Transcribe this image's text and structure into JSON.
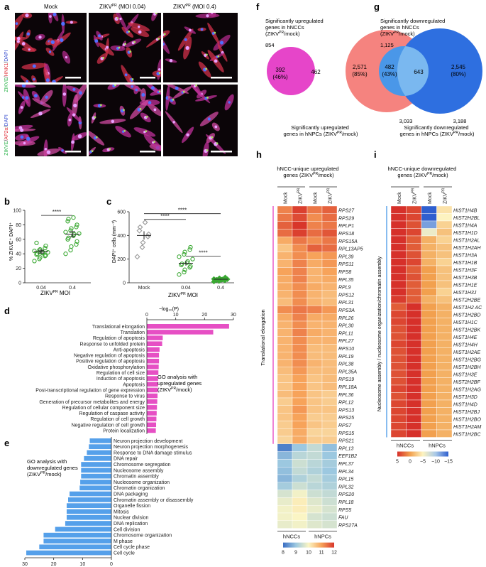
{
  "panels": {
    "a": {
      "letter": "a",
      "col_headers": [
        "Mock",
        "ZIKV",
        "PR",
        " (MOI 0.04)",
        "ZIKV",
        "PR",
        " (MOI 0.4)"
      ],
      "row_labels": [
        {
          "parts": [
            "ZIKVE",
            "/",
            "HNK1",
            "/",
            "DAPI"
          ],
          "colors": [
            "#2bb34a",
            "#333",
            "#e0303a",
            "#333",
            "#3a4fd0"
          ]
        },
        {
          "parts": [
            "ZIKVE",
            "/",
            "AP2α",
            "/",
            "DAPI"
          ],
          "colors": [
            "#2bb34a",
            "#333",
            "#e0303a",
            "#333",
            "#3a4fd0"
          ]
        }
      ]
    },
    "b": {
      "letter": "b",
      "ylabel": "% ZIKVE⁺ DAPI⁺",
      "xlabel": "ZIKV",
      "xlabel_sup": "PR",
      "xlabel_tail": " MOI",
      "sig": "****",
      "colors": {
        "points": "#3aa832"
      }
    },
    "c": {
      "letter": "c",
      "ylabel": "DAPI⁺ cells (mm⁻²)",
      "xlabel": "ZIKV",
      "xlabel_sup": "PR",
      "xlabel_tail": " MOI",
      "sig": [
        "****",
        "****",
        "****"
      ],
      "colors": {
        "mock": "#999999",
        "infected": "#3aa832"
      }
    },
    "d": {
      "letter": "d",
      "axis_title": "−log₁₀(P)",
      "note": [
        "GO analysis with",
        "upregulated genes",
        "(ZIKV",
        "PR",
        "/mock)"
      ],
      "color": "#e64fc4"
    },
    "e": {
      "letter": "e",
      "note": [
        "GO analysis with",
        "downregulated genes",
        "(ZIKV",
        "PR",
        "/mock)"
      ],
      "color": "#55a0ea"
    },
    "f": {
      "letter": "f",
      "top_label": [
        "Significantly upregulated",
        "genes in hNCCs",
        "(ZIKV",
        "PR",
        "/mock)"
      ],
      "top_count": "854",
      "left_only": "392",
      "left_pct": "(46%)",
      "overlap": "462",
      "right_only": "2,571",
      "right_pct": "(85%)",
      "bottom_count": "3,033",
      "bottom_label": [
        "Significantly upregulated",
        "genes in hNPCs (ZIKV",
        "PR",
        "/mock)"
      ],
      "colors": {
        "left": "#e645c9",
        "right": "#f5837f",
        "overlap": "#f364b6"
      }
    },
    "g": {
      "letter": "g",
      "top_label": [
        "Significantly downregulated",
        "genes in hNCCs",
        "(ZIKV",
        "PR",
        "/mock)"
      ],
      "top_count": "1,125",
      "left_only": "482",
      "left_pct": "(43%)",
      "overlap": "643",
      "right_only": "2,545",
      "right_pct": "(80%)",
      "bottom_count": "3,188",
      "bottom_label": [
        "Significantly downregulated",
        "genes in hNPCs (ZIKV",
        "PR",
        "/mock)"
      ],
      "colors": {
        "left": "#4a97e8",
        "right": "#2e6fe0",
        "overlap": "#7ab8f0"
      }
    },
    "h": {
      "letter": "h",
      "title": [
        "hNCC-unique upregulated",
        "genes (ZIKV",
        "PR",
        "/mock)"
      ],
      "col_labels": [
        "Mock",
        "ZIKV",
        "Mock",
        "ZIKV"
      ],
      "col_sup": "PR",
      "row_group": "Translational elongation",
      "group_labels": [
        "hNCCs",
        "hNPCs"
      ],
      "scale_ticks": [
        "8",
        "9",
        "10",
        "11",
        "12"
      ]
    },
    "i": {
      "letter": "i",
      "title": [
        "hNCC-unique downregulated",
        "genes (ZIKV",
        "PR",
        "/mock)"
      ],
      "col_labels": [
        "Mock",
        "ZIKV",
        "Mock",
        "ZIKV"
      ],
      "col_sup": "PR",
      "row_group": "Nucleosome assembly / nucleosome organization/chromatin assembly",
      "group_labels": [
        "hNCCs",
        "hNPCs"
      ],
      "scale_ticks": [
        "5",
        "0",
        "−5",
        "−10",
        "−15"
      ]
    }
  },
  "chart_data": [
    {
      "panel": "b",
      "type": "scatter",
      "categories": [
        "0.04",
        "0.4"
      ],
      "ylim": [
        0,
        100
      ],
      "yticks": [
        0,
        20,
        40,
        60,
        80,
        100
      ],
      "series": [
        {
          "category": "0.04",
          "values": [
            30,
            33,
            35,
            37,
            38,
            39,
            40,
            41,
            42,
            42,
            44,
            45,
            46,
            48,
            51,
            55
          ],
          "mean": 43,
          "sem": 2
        },
        {
          "category": "0.4",
          "values": [
            40,
            45,
            50,
            53,
            57,
            60,
            62,
            65,
            67,
            68,
            70,
            72,
            75,
            77,
            80,
            85,
            88,
            90
          ],
          "mean": 67,
          "sem": 3.5
        }
      ]
    },
    {
      "panel": "c",
      "type": "scatter",
      "categories": [
        "Mock",
        "0.04",
        "0.4"
      ],
      "ylim": [
        0,
        600
      ],
      "yticks": [
        0,
        200,
        400,
        600
      ],
      "series": [
        {
          "category": "Mock",
          "marker": "diamond",
          "values": [
            220,
            300,
            340,
            390,
            410,
            440,
            470,
            510
          ],
          "mean": 400,
          "sem": 35
        },
        {
          "category": "0.04",
          "marker": "circle",
          "values": [
            70,
            90,
            110,
            130,
            140,
            150,
            160,
            170,
            180,
            200,
            220,
            240,
            260,
            280,
            300
          ],
          "mean": 165,
          "sem": 20
        },
        {
          "category": "0.4",
          "marker": "diamond",
          "values": [
            10,
            15,
            18,
            20,
            22,
            24,
            25,
            26,
            28,
            30,
            32,
            35,
            38,
            40,
            45
          ],
          "mean": 30,
          "sem": 4
        }
      ]
    },
    {
      "panel": "d",
      "type": "bar",
      "orientation": "horizontal",
      "xlim": [
        0,
        30
      ],
      "xticks": [
        0,
        10,
        20,
        30
      ],
      "categories": [
        "Translational elongation",
        "Translation",
        "Regulation of apoptosis",
        "Response to unfolded protein",
        "Anti-apoptosis",
        "Negative regulation of apoptosis",
        "Positive regulation of apoptosis",
        "Oxidative phosphorylation",
        "Regulation of cell size",
        "Induction of apoptosis",
        "Apoptosis",
        "Post-transcriptional regulation of gene expression",
        "Response to virus",
        "Generation of precursor metabolites and energy",
        "Regulation of cellular component size",
        "Regulation of caspase activity",
        "Regulation of cell growth",
        "Negative regulation of cell growth",
        "Protein localization"
      ],
      "values": [
        28.5,
        23,
        5.5,
        5.3,
        4.4,
        4.2,
        4.2,
        4.1,
        4.0,
        3.9,
        3.9,
        3.8,
        3.7,
        3.6,
        3.5,
        3.4,
        3.3,
        3.2,
        3.1
      ]
    },
    {
      "panel": "e",
      "type": "bar",
      "orientation": "horizontal-reversed",
      "xlim": [
        0,
        30
      ],
      "xticks": [
        30,
        20,
        10,
        0
      ],
      "categories": [
        "Neuron projection development",
        "Neuron projection morphogenesis",
        "Response to DNA damage stimulus",
        "DNA repair",
        "Chromosome segregation",
        "Nucleosome assembly",
        "Chromatin assembly",
        "Nucleosome organization",
        "Chromatin organization",
        "DNA packaging",
        "Chromatin assembly or disassembly",
        "Organelle fission",
        "Mitosis",
        "Nuclear division",
        "DNA replication",
        "Cell division",
        "Chromosome organization",
        "M phase",
        "Cell cycle phase",
        "Cell cycle"
      ],
      "values": [
        7.5,
        7.8,
        8.5,
        9.5,
        10.5,
        10.5,
        10.5,
        10.8,
        11,
        14.5,
        15,
        15.5,
        15.5,
        15.5,
        16,
        19.5,
        23.5,
        23.5,
        25,
        29.5
      ]
    },
    {
      "panel": "h",
      "type": "heatmap",
      "rows": [
        "RPS27",
        "RPS29",
        "RPLP1",
        "RPS18",
        "RPS15A",
        "RPL13AP5",
        "RPL39",
        "RPS11",
        "RPS8",
        "RPL35",
        "RPL9",
        "RPS12",
        "RPL31",
        "RPS3A",
        "RPL26",
        "RPL30",
        "RPL11",
        "RPL27",
        "RPS10",
        "RPL19",
        "RPL38",
        "RPL35A",
        "RPS19",
        "RPL18A",
        "RPL36",
        "RPL12",
        "RPS13",
        "RPS25",
        "RPS7",
        "RPS15",
        "RPS21",
        "RPL13",
        "EEF1B2",
        "RPL37",
        "RPL34",
        "RPL15",
        "RPL32",
        "RPS20",
        "RPL18",
        "RPS5",
        "FAU",
        "RPS27A"
      ],
      "columns": [
        "hNCC Mock",
        "hNCC ZIKV",
        "hNPC Mock",
        "hNPC ZIKV"
      ],
      "values": [
        [
          11.3,
          11.9,
          11.4,
          11.6
        ],
        [
          11.4,
          11.8,
          11.2,
          11.5
        ],
        [
          11.6,
          12.0,
          11.3,
          11.4
        ],
        [
          11.5,
          11.9,
          11.5,
          11.7
        ],
        [
          10.9,
          11.4,
          11.2,
          11.4
        ],
        [
          10.6,
          11.2,
          11.6,
          11.5
        ],
        [
          10.8,
          11.2,
          11.0,
          11.1
        ],
        [
          10.8,
          11.3,
          10.9,
          11.1
        ],
        [
          11.0,
          11.3,
          10.8,
          11.0
        ],
        [
          10.9,
          11.3,
          10.8,
          10.9
        ],
        [
          10.9,
          11.2,
          10.9,
          10.8
        ],
        [
          10.8,
          11.2,
          10.8,
          10.7
        ],
        [
          10.7,
          11.2,
          10.8,
          10.7
        ],
        [
          11.2,
          11.4,
          11.3,
          11.1
        ],
        [
          10.9,
          11.3,
          10.9,
          10.9
        ],
        [
          10.8,
          11.2,
          10.8,
          10.8
        ],
        [
          10.8,
          11.3,
          10.9,
          10.8
        ],
        [
          10.8,
          11.2,
          10.8,
          10.8
        ],
        [
          10.8,
          11.2,
          10.7,
          10.7
        ],
        [
          10.8,
          11.2,
          10.7,
          10.7
        ],
        [
          10.8,
          11.2,
          10.8,
          10.7
        ],
        [
          10.7,
          11.1,
          10.7,
          10.7
        ],
        [
          10.6,
          11.0,
          10.6,
          10.7
        ],
        [
          10.6,
          11.0,
          10.6,
          10.7
        ],
        [
          10.7,
          11.0,
          10.6,
          10.5
        ],
        [
          10.5,
          11.0,
          10.6,
          10.5
        ],
        [
          10.6,
          11.1,
          10.6,
          10.6
        ],
        [
          10.6,
          11.0,
          10.5,
          10.5
        ],
        [
          10.5,
          11.0,
          10.6,
          10.5
        ],
        [
          10.5,
          10.9,
          10.4,
          10.4
        ],
        [
          10.4,
          10.9,
          10.5,
          10.5
        ],
        [
          8.2,
          9.0,
          9.4,
          8.9
        ],
        [
          8.8,
          9.3,
          9.4,
          9.0
        ],
        [
          9.0,
          9.5,
          9.3,
          9.1
        ],
        [
          8.9,
          9.4,
          9.2,
          9.0
        ],
        [
          8.8,
          9.2,
          9.4,
          9.1
        ],
        [
          9.1,
          9.5,
          9.3,
          9.2
        ],
        [
          9.6,
          9.9,
          9.5,
          9.4
        ],
        [
          9.8,
          10.1,
          9.7,
          9.5
        ],
        [
          9.9,
          10.1,
          9.8,
          9.6
        ],
        [
          9.9,
          10.0,
          9.6,
          9.5
        ],
        [
          9.8,
          9.9,
          9.7,
          9.6
        ]
      ],
      "scale": [
        8,
        12
      ]
    },
    {
      "panel": "i",
      "type": "heatmap",
      "rows": [
        "HIST1H4B",
        "HIST2H2BL",
        "HIST1H4A",
        "HIST1H1D",
        "HIST1H2AL",
        "HIST1H2AH",
        "HIST1H3A",
        "HIST1H1B",
        "HIST1H3F",
        "HIST1H3B",
        "HIST1H1E",
        "HIST1H3J",
        "HIST2H2BE",
        "HIST1H2 AC",
        "HIST1H2BD",
        "HIST1H1C",
        "HIST1H2BK",
        "HIST1H4E",
        "HIST1H4H",
        "HIST1H2AE",
        "HIST1H2BG",
        "HIST1H2BH",
        "HIST1H3E",
        "HIST2H2BF",
        "HIST1H2AG",
        "HIST1H3D",
        "HIST1H4D",
        "HIST1H2BJ",
        "HIST1H2BO",
        "HIST1H2AM",
        "HIST1H2BC"
      ],
      "columns": [
        "hNCC Mock",
        "hNCC ZIKV",
        "hNPC Mock",
        "hNPC ZIKV"
      ],
      "values": [
        [
          6.5,
          4,
          -16,
          -4
        ],
        [
          6,
          4,
          -15,
          -5
        ],
        [
          6,
          3.5,
          -12,
          -3
        ],
        [
          5.5,
          4,
          -6,
          -2
        ],
        [
          5.5,
          3,
          -1,
          -3
        ],
        [
          5.5,
          3,
          -1,
          -2
        ],
        [
          6,
          3.5,
          -1,
          -2
        ],
        [
          5.5,
          4,
          -1,
          -3
        ],
        [
          5.5,
          3,
          0,
          -2
        ],
        [
          6,
          3.5,
          0,
          -2
        ],
        [
          5,
          3,
          0,
          -2
        ],
        [
          5,
          3,
          0,
          -3
        ],
        [
          4.5,
          3,
          -1,
          -2
        ],
        [
          3,
          5,
          0,
          -1
        ],
        [
          4,
          5,
          0,
          -1
        ],
        [
          4,
          5,
          0,
          -1
        ],
        [
          3.5,
          5,
          0,
          -1
        ],
        [
          3.5,
          5,
          0,
          -1
        ],
        [
          4,
          5,
          0,
          -1
        ],
        [
          3.5,
          5,
          0,
          -1
        ],
        [
          3.5,
          5,
          0,
          -1
        ],
        [
          3.5,
          5,
          0,
          -1
        ],
        [
          3.5,
          5,
          0,
          -1
        ],
        [
          3.5,
          5,
          0,
          -1
        ],
        [
          4,
          5,
          0,
          -1
        ],
        [
          3.5,
          5,
          0,
          -1
        ],
        [
          4,
          5,
          0,
          -1
        ],
        [
          4,
          5,
          0,
          -1
        ],
        [
          4,
          5,
          0,
          -1
        ],
        [
          4,
          5,
          0,
          -1
        ],
        [
          4,
          5,
          0,
          -1
        ]
      ],
      "scale": [
        -15,
        5
      ]
    }
  ]
}
